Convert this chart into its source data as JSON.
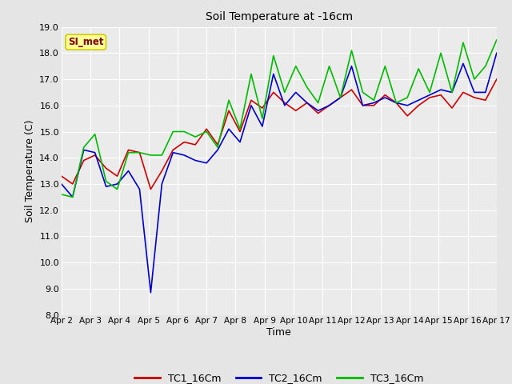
{
  "title": "Soil Temperature at -16cm",
  "xlabel": "Time",
  "ylabel": "Soil Temperature (C)",
  "ylim": [
    8.0,
    19.0
  ],
  "yticks": [
    8.0,
    9.0,
    10.0,
    11.0,
    12.0,
    13.0,
    14.0,
    15.0,
    16.0,
    17.0,
    18.0,
    19.0
  ],
  "xtick_labels": [
    "Apr 2",
    "Apr 3",
    "Apr 4",
    "Apr 5",
    "Apr 6",
    "Apr 7",
    "Apr 8",
    "Apr 9",
    "Apr 10",
    "Apr 11",
    "Apr 12",
    "Apr 13",
    "Apr 14",
    "Apr 15",
    "Apr 16",
    "Apr 17"
  ],
  "bg_color": "#e5e5e5",
  "plot_bg_color": "#ebebeb",
  "grid_color": "#ffffff",
  "annotation_text": "SI_met",
  "annotation_bg": "#ffff99",
  "annotation_border": "#cccc00",
  "annotation_text_color": "#880000",
  "tc1_color": "#cc0000",
  "tc2_color": "#0000cc",
  "tc3_color": "#00bb00",
  "legend_entries": [
    "TC1_16Cm",
    "TC2_16Cm",
    "TC3_16Cm"
  ],
  "tc1_data": [
    13.3,
    13.0,
    13.9,
    14.1,
    13.6,
    13.3,
    14.3,
    14.2,
    12.8,
    13.5,
    14.3,
    14.6,
    14.5,
    15.1,
    14.5,
    15.8,
    15.0,
    16.2,
    15.9,
    16.5,
    16.1,
    15.8,
    16.1,
    15.7,
    16.0,
    16.3,
    16.6,
    16.0,
    16.0,
    16.4,
    16.1,
    15.6,
    16.0,
    16.3,
    16.4,
    15.9,
    16.5,
    16.3,
    16.2,
    17.0
  ],
  "tc2_data": [
    13.0,
    12.5,
    14.3,
    14.2,
    12.9,
    13.0,
    13.5,
    12.8,
    8.85,
    13.0,
    14.2,
    14.1,
    13.9,
    13.8,
    14.3,
    15.1,
    14.6,
    16.0,
    15.2,
    17.2,
    16.0,
    16.5,
    16.1,
    15.8,
    16.0,
    16.3,
    17.5,
    16.0,
    16.1,
    16.3,
    16.1,
    16.0,
    16.2,
    16.4,
    16.6,
    16.5,
    17.6,
    16.5,
    16.5,
    18.0
  ],
  "tc3_data": [
    12.6,
    12.5,
    14.4,
    14.9,
    13.1,
    12.8,
    14.2,
    14.2,
    14.1,
    14.1,
    15.0,
    15.0,
    14.8,
    15.0,
    14.4,
    16.2,
    15.1,
    17.2,
    15.5,
    17.9,
    16.5,
    17.5,
    16.7,
    16.1,
    17.5,
    16.3,
    18.1,
    16.5,
    16.2,
    17.5,
    16.1,
    16.3,
    17.4,
    16.5,
    18.0,
    16.5,
    18.4,
    17.0,
    17.5,
    18.5
  ]
}
